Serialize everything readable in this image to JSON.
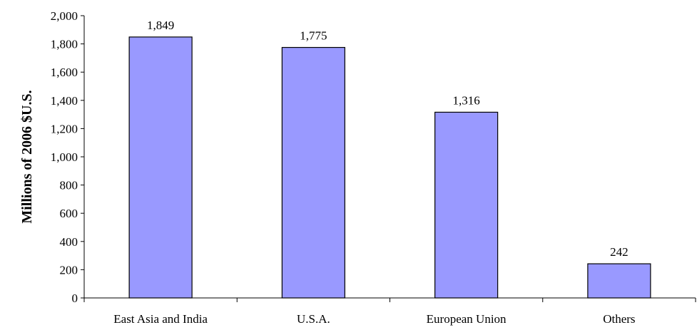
{
  "chart_data": {
    "type": "bar",
    "title": "",
    "xlabel": "",
    "ylabel": "Millions of 2006 $U.S.",
    "ylim": [
      0,
      2000
    ],
    "ytick_step": 200,
    "yticks": [
      "0",
      "200",
      "400",
      "600",
      "800",
      "1,000",
      "1,200",
      "1,400",
      "1,600",
      "1,800",
      "2,000"
    ],
    "categories": [
      "East Asia and India",
      "U.S.A.",
      "European Union",
      "Others"
    ],
    "values": [
      1849,
      1775,
      1316,
      242
    ],
    "data_labels": [
      "1,849",
      "1,775",
      "1,316",
      "242"
    ],
    "grid": false,
    "legend": "none",
    "colors": {
      "bar_fill": "#9999ff",
      "bar_stroke": "#000000",
      "axis": "#000000"
    }
  }
}
